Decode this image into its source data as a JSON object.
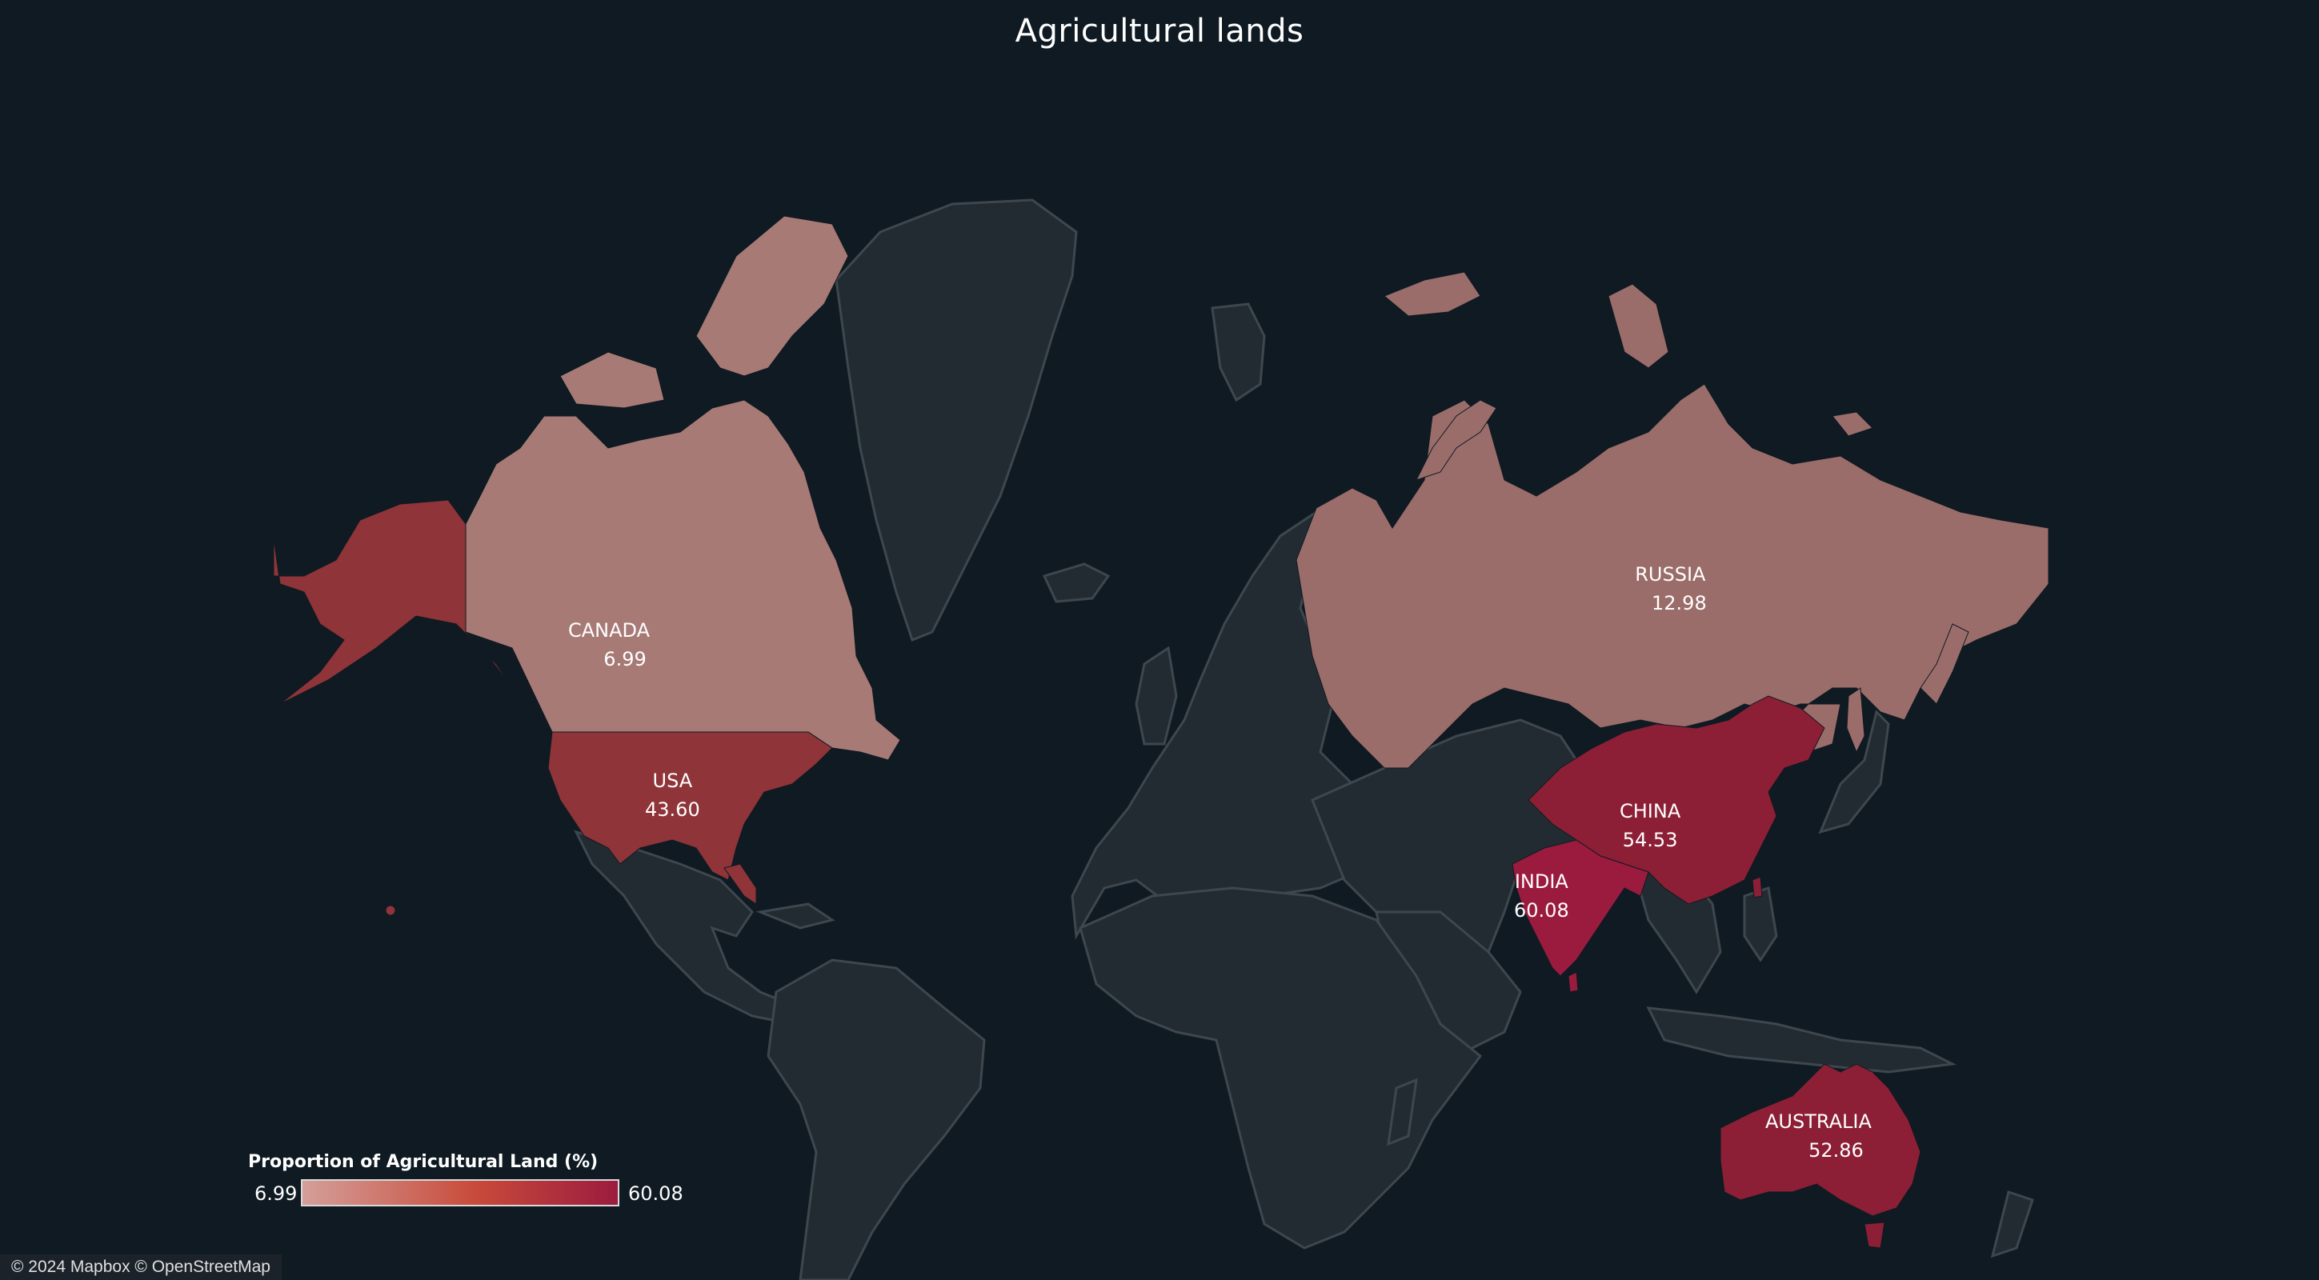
{
  "title": "Agricultural lands",
  "colors": {
    "background": "#0f1a22",
    "land": "#222b31",
    "border": "#3e474d",
    "scale_low": "#d4a09a",
    "scale_mid": "#c84a3a",
    "scale_high": "#9b1b3f"
  },
  "legend": {
    "title": "Proportion of Agricultural Land (%)",
    "min_label": "6.99",
    "max_label": "60.08",
    "min": 6.99,
    "max": 60.08
  },
  "countries": [
    {
      "name": "CANADA",
      "value_label": "6.99",
      "value": 6.99
    },
    {
      "name": "USA",
      "value_label": "43.60",
      "value": 43.6
    },
    {
      "name": "RUSSIA",
      "value_label": "12.98",
      "value": 12.98
    },
    {
      "name": "CHINA",
      "value_label": "54.53",
      "value": 54.53
    },
    {
      "name": "INDIA",
      "value_label": "60.08",
      "value": 60.08
    },
    {
      "name": "AUSTRALIA",
      "value_label": "52.86",
      "value": 52.86
    }
  ],
  "attribution": "© 2024 Mapbox © OpenStreetMap"
}
